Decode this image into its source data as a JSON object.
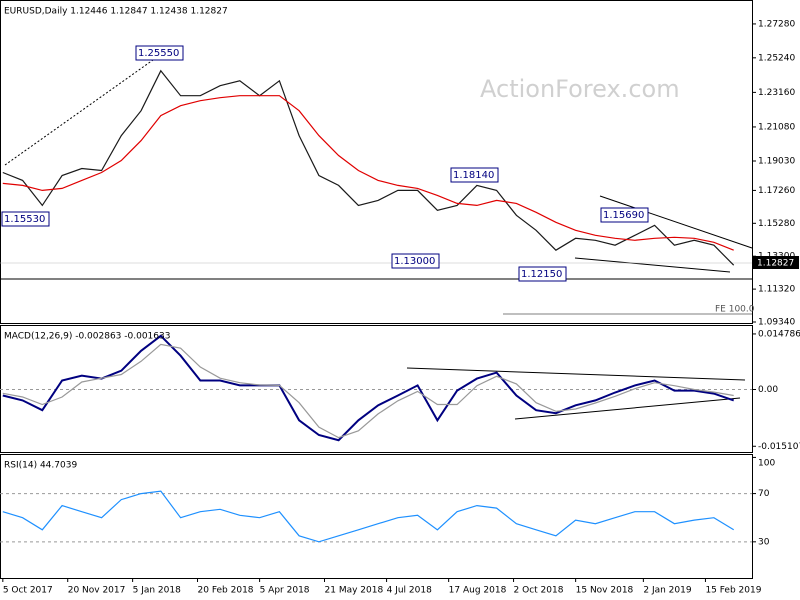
{
  "watermark": "ActionForex.com",
  "chart_data": [
    {
      "type": "line",
      "title": "EURUSD,Daily 1.12446 1.12847 1.12438 1.12827",
      "last_value_label": "1.12827",
      "x": [
        "2017-10-05",
        "2017-10-19",
        "2017-11-02",
        "2017-11-16",
        "2017-11-30",
        "2017-12-14",
        "2017-12-28",
        "2018-01-11",
        "2018-01-25",
        "2018-02-08",
        "2018-02-22",
        "2018-03-08",
        "2018-03-22",
        "2018-04-05",
        "2018-04-19",
        "2018-05-03",
        "2018-05-17",
        "2018-05-31",
        "2018-06-14",
        "2018-06-28",
        "2018-07-12",
        "2018-07-26",
        "2018-08-09",
        "2018-08-23",
        "2018-09-06",
        "2018-09-20",
        "2018-10-04",
        "2018-10-18",
        "2018-11-01",
        "2018-11-15",
        "2018-11-29",
        "2018-12-13",
        "2018-12-27",
        "2019-01-10",
        "2019-01-24",
        "2019-02-07",
        "2019-02-21",
        "2019-03-07"
      ],
      "xlim": [
        "2017-10-03",
        "2019-03-20"
      ],
      "series": [
        {
          "color": "#1a1a1a",
          "values": [
            1.1834,
            1.1786,
            1.1636,
            1.1816,
            1.1858,
            1.1846,
            1.2056,
            1.2206,
            1.2446,
            1.2296,
            1.2296,
            1.2356,
            1.2386,
            1.2296,
            1.2386,
            1.2056,
            1.1816,
            1.1756,
            1.1636,
            1.1666,
            1.1726,
            1.1726,
            1.1606,
            1.1636,
            1.1756,
            1.1726,
            1.1576,
            1.1486,
            1.1366,
            1.1438,
            1.1426,
            1.1396,
            1.1456,
            1.1516,
            1.1396,
            1.1426,
            1.1396,
            1.1276
          ]
        },
        {
          "color": "#e00000",
          "values": [
            1.1768,
            1.1756,
            1.1726,
            1.1738,
            1.1786,
            1.1834,
            1.1906,
            1.2026,
            1.2176,
            1.2236,
            1.2266,
            1.2284,
            1.2296,
            1.2296,
            1.2296,
            1.2206,
            1.2056,
            1.1936,
            1.1846,
            1.1786,
            1.1756,
            1.1738,
            1.1696,
            1.1648,
            1.1636,
            1.1666,
            1.1648,
            1.1594,
            1.1534,
            1.1486,
            1.1456,
            1.1438,
            1.1426,
            1.1438,
            1.1444,
            1.1438,
            1.1414,
            1.1366
          ]
        }
      ],
      "ylim": [
        1.0928,
        1.2866
      ],
      "yticks": [
        {
          "value": 1.2728,
          "label": "1.27280"
        },
        {
          "value": 1.2524,
          "label": "1.25240"
        },
        {
          "value": 1.2316,
          "label": "1.23160"
        },
        {
          "value": 1.2108,
          "label": "1.21080"
        },
        {
          "value": 1.1903,
          "label": "1.19030"
        },
        {
          "value": 1.1726,
          "label": "1.17260"
        },
        {
          "value": 1.1528,
          "label": "1.15280"
        },
        {
          "value": 1.133,
          "label": "1.13300"
        },
        {
          "value": 1.1132,
          "label": "1.11320"
        },
        {
          "value": 1.0934,
          "label": "1.09340"
        }
      ],
      "annotations": [
        "1.25550",
        "1.15530",
        "1.13000",
        "1.18140",
        "1.12150",
        "1.15690",
        "FE 100.0"
      ]
    },
    {
      "type": "line",
      "title": "MACD(12,26,9) -0.002863 -0.001633",
      "series": [
        {
          "color": "#000080",
          "values": [
            -0.0016,
            -0.0029,
            -0.0055,
            0.0024,
            0.0037,
            0.0029,
            0.005,
            0.0103,
            0.0143,
            0.009,
            0.0024,
            0.0024,
            0.0011,
            0.0011,
            0.0011,
            -0.0082,
            -0.0121,
            -0.0135,
            -0.0082,
            -0.0042,
            -0.0016,
            0.0011,
            -0.0082,
            -0.0003,
            0.0029,
            0.0045,
            -0.0016,
            -0.0055,
            -0.0063,
            -0.0042,
            -0.0029,
            -0.0008,
            0.0011,
            0.0024,
            -0.0003,
            -0.0003,
            -0.0011,
            -0.0029
          ]
        },
        {
          "color": "#999999",
          "values": [
            -0.001,
            -0.002,
            -0.004,
            -0.002,
            0.002,
            0.003,
            0.004,
            0.0075,
            0.012,
            0.011,
            0.006,
            0.003,
            0.0018,
            0.0012,
            0.0011,
            -0.0035,
            -0.01,
            -0.0128,
            -0.011,
            -0.0065,
            -0.003,
            -0.0005,
            -0.004,
            -0.004,
            0.001,
            0.0035,
            0.0015,
            -0.0035,
            -0.0058,
            -0.0052,
            -0.0036,
            -0.0018,
            0.0002,
            0.0018,
            0.001,
            0.0,
            -0.0007,
            -0.0016
          ]
        }
      ],
      "ylim": [
        -0.016632,
        0.016898
      ],
      "yticks": [
        0.014786,
        {
          "value": 0,
          "label": "0.00"
        },
        -0.015107
      ]
    },
    {
      "type": "line",
      "title": "RSI(14) 44.7039",
      "series": [
        {
          "color": "#1e90ff",
          "values": [
            55,
            50,
            40,
            60,
            55,
            50,
            65,
            70,
            72,
            50,
            55,
            57,
            52,
            50,
            55,
            35,
            30,
            35,
            40,
            45,
            50,
            52,
            40,
            55,
            60,
            58,
            45,
            40,
            35,
            48,
            45,
            50,
            55,
            55,
            45,
            48,
            50,
            40
          ]
        }
      ],
      "ylim": [
        0,
        102
      ],
      "yticks": [
        100,
        70,
        30
      ],
      "xticks": [
        {
          "value": "2017-10-05",
          "label": "5 Oct 2017"
        },
        {
          "value": "2017-11-20",
          "label": "20 Nov 2017"
        },
        {
          "value": "2018-01-05",
          "label": "5 Jan 2018"
        },
        {
          "value": "2018-02-20",
          "label": "20 Feb 2018"
        },
        {
          "value": "2018-04-05",
          "label": "5 Apr 2018"
        },
        {
          "value": "2018-05-21",
          "label": "21 May 2018"
        },
        {
          "value": "2018-07-04",
          "label": "4 Jul 2018"
        },
        {
          "value": "2018-08-17",
          "label": "17 Aug 2018"
        },
        {
          "value": "2018-10-02",
          "label": "2 Oct 2018"
        },
        {
          "value": "2018-11-15",
          "label": "15 Nov 2018"
        },
        {
          "value": "2019-01-02",
          "label": "2 Jan 2019"
        },
        {
          "value": "2019-02-15",
          "label": "15 Feb 2019"
        }
      ]
    }
  ]
}
